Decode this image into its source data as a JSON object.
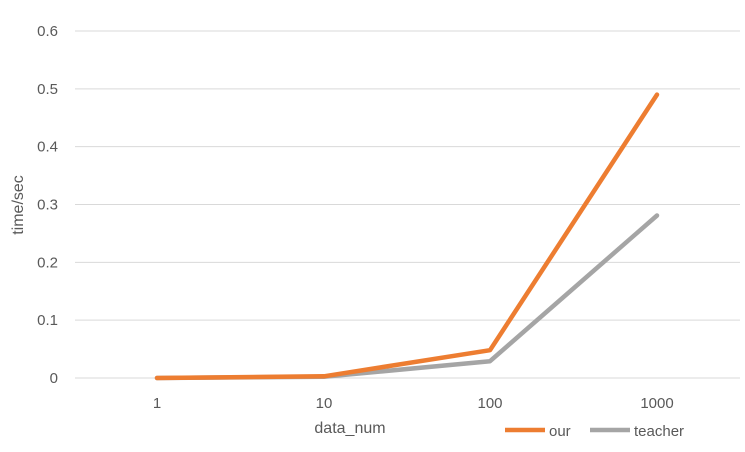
{
  "chart_data": {
    "type": "line",
    "categories": [
      "1",
      "10",
      "100",
      "1000"
    ],
    "series": [
      {
        "name": "our",
        "values": [
          0,
          0.003,
          0.048,
          0.49
        ],
        "color": "#ED7D31"
      },
      {
        "name": "teacher",
        "values": [
          0,
          0.002,
          0.029,
          0.281
        ],
        "color": "#A5A5A5"
      }
    ],
    "xlabel": "data_num",
    "ylabel": "time/sec",
    "ylim": [
      0,
      0.6
    ],
    "yticks": [
      "0",
      "0.1",
      "0.2",
      "0.3",
      "0.4",
      "0.5",
      "0.6"
    ],
    "grid": true,
    "legend": "bottom-right",
    "gridline_color": "#D9D9D9"
  }
}
